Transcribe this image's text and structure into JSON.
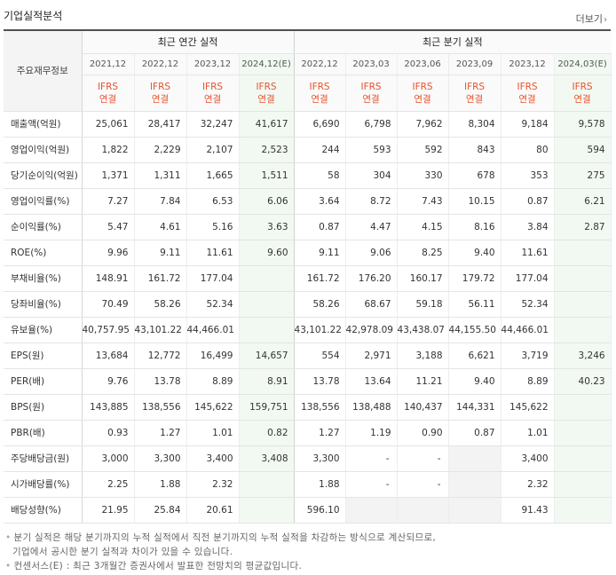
{
  "section_title": "기업실적분석",
  "more_link": "더보기",
  "rowhead_label": "주요재무정보",
  "annual_header": "최근 연간 실적",
  "quarter_header": "최근 분기 실적",
  "annual_periods": [
    "2021,12",
    "2022,12",
    "2023,12",
    "2024,12(E)"
  ],
  "quarter_periods": [
    "2022,12",
    "2023,03",
    "2023,06",
    "2023,09",
    "2023,12",
    "2024,03(E)"
  ],
  "basis_line1": "IFRS",
  "basis_line2": "연결",
  "rows": [
    {
      "label": "매출액(억원)",
      "group": 0,
      "annual": [
        "25,061",
        "28,417",
        "32,247",
        "41,617"
      ],
      "quarter": [
        "6,690",
        "6,798",
        "7,962",
        "8,304",
        "9,184",
        "9,578"
      ]
    },
    {
      "label": "영업이익(억원)",
      "group": 0,
      "annual": [
        "1,822",
        "2,229",
        "2,107",
        "2,523"
      ],
      "quarter": [
        "244",
        "593",
        "592",
        "843",
        "80",
        "594"
      ]
    },
    {
      "label": "당기순이익(억원)",
      "group": 0,
      "annual": [
        "1,371",
        "1,311",
        "1,665",
        "1,511"
      ],
      "quarter": [
        "58",
        "304",
        "330",
        "678",
        "353",
        "275"
      ]
    },
    {
      "label": "영업이익률(%)",
      "group": 1,
      "annual": [
        "7.27",
        "7.84",
        "6.53",
        "6.06"
      ],
      "quarter": [
        "3.64",
        "8.72",
        "7.43",
        "10.15",
        "0.87",
        "6.21"
      ]
    },
    {
      "label": "순이익률(%)",
      "group": 0,
      "annual": [
        "5.47",
        "4.61",
        "5.16",
        "3.63"
      ],
      "quarter": [
        "0.87",
        "4.47",
        "4.15",
        "8.16",
        "3.84",
        "2.87"
      ]
    },
    {
      "label": "ROE(%)",
      "group": 0,
      "annual": [
        "9.96",
        "9.11",
        "11.61",
        "9.60"
      ],
      "quarter": [
        "9.11",
        "9.06",
        "8.25",
        "9.40",
        "11.61",
        ""
      ]
    },
    {
      "label": "부채비율(%)",
      "group": 1,
      "annual": [
        "148.91",
        "161.72",
        "177.04",
        ""
      ],
      "quarter": [
        "161.72",
        "176.20",
        "160.17",
        "179.72",
        "177.04",
        ""
      ]
    },
    {
      "label": "당좌비율(%)",
      "group": 0,
      "annual": [
        "70.49",
        "58.26",
        "52.34",
        ""
      ],
      "quarter": [
        "58.26",
        "68.67",
        "59.18",
        "56.11",
        "52.34",
        ""
      ]
    },
    {
      "label": "유보율(%)",
      "group": 0,
      "annual": [
        "40,757.95",
        "43,101.22",
        "44,466.01",
        ""
      ],
      "quarter": [
        "43,101.22",
        "42,978.09",
        "43,438.07",
        "44,155.50",
        "44,466.01",
        ""
      ]
    },
    {
      "label": "EPS(원)",
      "group": 1,
      "annual": [
        "13,684",
        "12,772",
        "16,499",
        "14,657"
      ],
      "quarter": [
        "554",
        "2,971",
        "3,188",
        "6,621",
        "3,719",
        "3,246"
      ]
    },
    {
      "label": "PER(배)",
      "group": 0,
      "annual": [
        "9.76",
        "13.78",
        "8.89",
        "8.91"
      ],
      "quarter": [
        "13.78",
        "13.64",
        "11.21",
        "9.40",
        "8.89",
        "40.23"
      ]
    },
    {
      "label": "BPS(원)",
      "group": 0,
      "annual": [
        "143,885",
        "138,556",
        "145,622",
        "159,751"
      ],
      "quarter": [
        "138,556",
        "138,488",
        "140,437",
        "144,331",
        "145,622",
        ""
      ]
    },
    {
      "label": "PBR(배)",
      "group": 0,
      "annual": [
        "0.93",
        "1.27",
        "1.01",
        "0.82"
      ],
      "quarter": [
        "1.27",
        "1.19",
        "0.90",
        "0.87",
        "1.01",
        ""
      ]
    },
    {
      "label": "주당배당금(원)",
      "group": 1,
      "annual": [
        "3,000",
        "3,300",
        "3,400",
        "3,408"
      ],
      "quarter": [
        "3,300",
        "-",
        "-",
        "",
        "3,400",
        ""
      ]
    },
    {
      "label": "시가배당률(%)",
      "group": 0,
      "annual": [
        "2.25",
        "1.88",
        "2.32",
        ""
      ],
      "quarter": [
        "1.88",
        "-",
        "-",
        "",
        "2.32",
        ""
      ]
    },
    {
      "label": "배당성향(%)",
      "group": 0,
      "annual": [
        "21.95",
        "25.84",
        "20.61",
        ""
      ],
      "quarter": [
        "596.10",
        "",
        "",
        "",
        "91.43",
        ""
      ]
    }
  ],
  "notes": {
    "note1_line1": "분기 실적은 해당 분기까지의 누적 실적에서 직전 분기까지의 누적 실적을 차감하는 방식으로 계산되므로,",
    "note1_line2": "기업에서 공시한 분기 실적과 차이가 있을 수 있습니다.",
    "note2": "컨센서스(E) : 최근 3개월간 증권사에서 발표한 전망치의 평균값입니다."
  }
}
